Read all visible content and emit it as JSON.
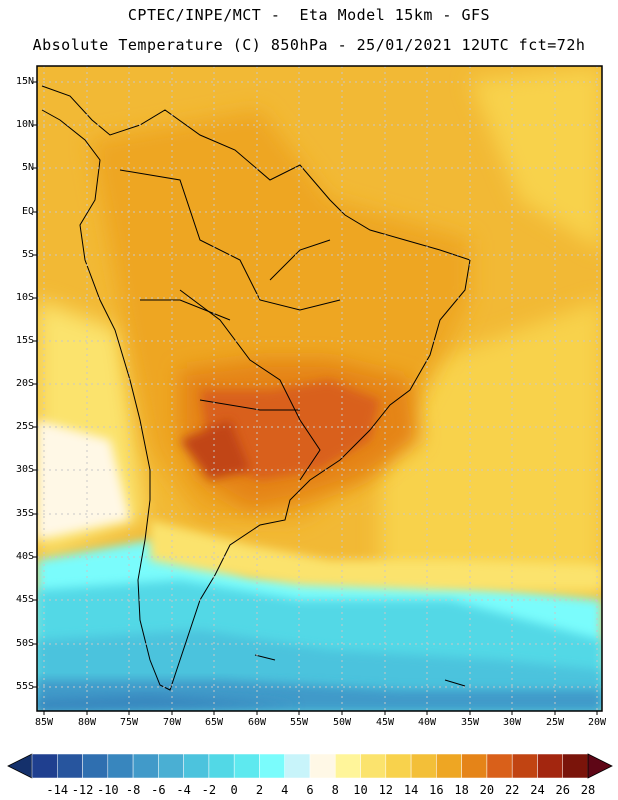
{
  "header": {
    "line1": "CPTEC/INPE/MCT -  Eta Model 15km - GFS",
    "line2": "Absolute Temperature (C) 850hPa - 25/01/2021 12UTC fct=72h"
  },
  "map": {
    "lat_labels": [
      "15N",
      "10N",
      "5N",
      "EQ",
      "5S",
      "10S",
      "15S",
      "20S",
      "25S",
      "30S",
      "35S",
      "40S",
      "45S",
      "50S",
      "55S"
    ],
    "lon_labels": [
      "85W",
      "80W",
      "75W",
      "70W",
      "65W",
      "60W",
      "55W",
      "50W",
      "45W",
      "40W",
      "35W",
      "30W",
      "25W",
      "20W"
    ]
  },
  "colorbar": {
    "labels": [
      "-14",
      "-12",
      "-10",
      "-8",
      "-6",
      "-4",
      "-2",
      "0",
      "2",
      "4",
      "6",
      "8",
      "10",
      "12",
      "14",
      "16",
      "18",
      "20",
      "22",
      "24",
      "26",
      "28"
    ],
    "colors": [
      "#1f3f8f",
      "#27559e",
      "#2f6fb0",
      "#3886be",
      "#419ac9",
      "#4aafd3",
      "#4cc3dd",
      "#52d8e6",
      "#5ee9ef",
      "#7afcfc",
      "#c8f4fa",
      "#fff8e6",
      "#fff59a",
      "#fbe36d",
      "#f8d24c",
      "#f3bf38",
      "#eea623",
      "#e58418",
      "#d9601a",
      "#c14412",
      "#a3260f",
      "#7a140a"
    ],
    "under_color": "#14306b",
    "over_color": "#5e0616"
  }
}
